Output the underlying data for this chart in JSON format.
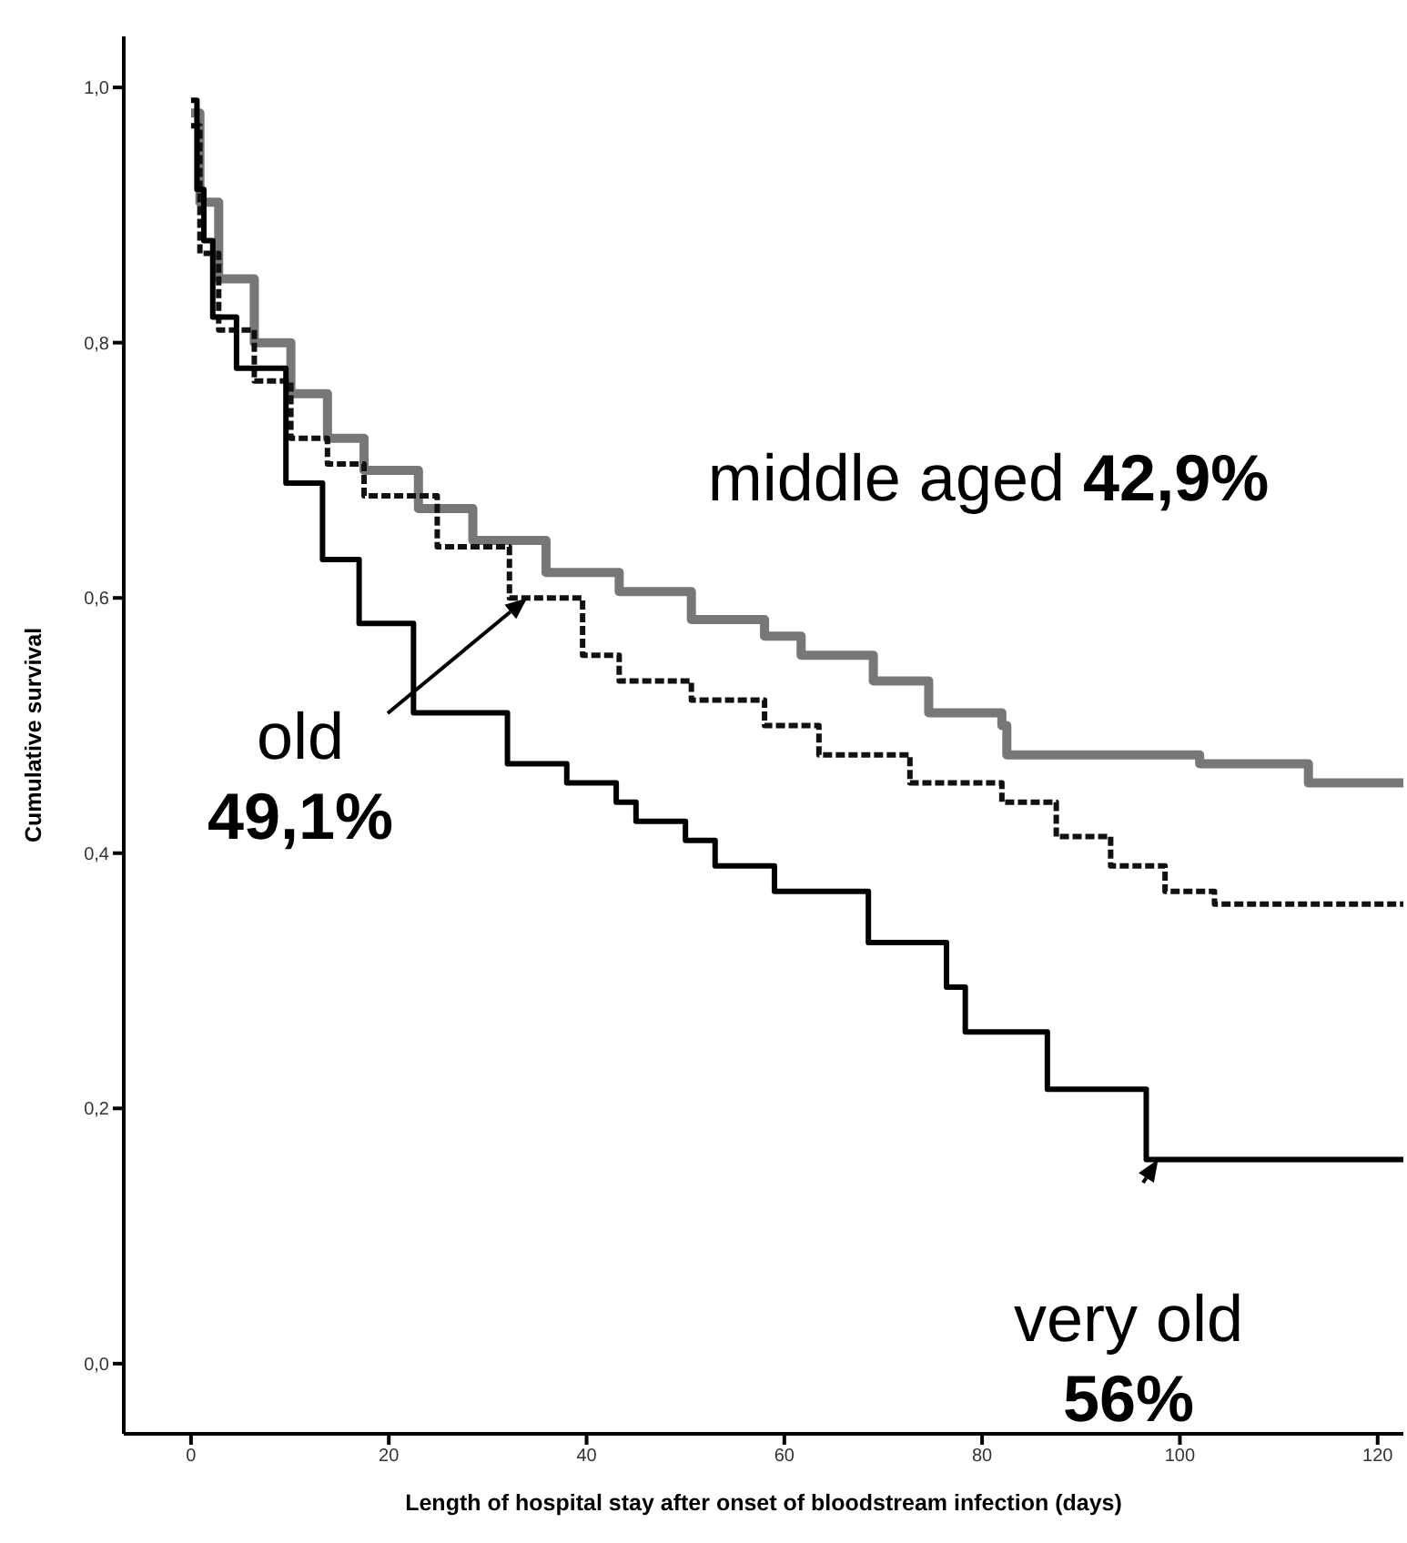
{
  "chart_data": {
    "type": "step",
    "xlabel": "Length of hospital stay after onset of bloodstream infection (days)",
    "ylabel": "Cumulative survival",
    "xlim": [
      -6.8,
      122.6
    ],
    "ylim": [
      -0.055,
      1.04
    ],
    "xticks": [
      0,
      20,
      40,
      60,
      80,
      100,
      120
    ],
    "yticks": [
      {
        "value": 0,
        "label": "0,0"
      },
      {
        "value": 0.2,
        "label": "0,2"
      },
      {
        "value": 0.4,
        "label": "0,4"
      },
      {
        "value": 0.6,
        "label": "0,6"
      },
      {
        "value": 0.8,
        "label": "0,8"
      },
      {
        "value": 1,
        "label": "1,0"
      }
    ],
    "line_style": "solid",
    "series": [
      {
        "color": "#777777",
        "x": [
          0,
          0.9,
          2.8,
          6.4,
          10.1,
          13.8,
          17.5,
          23,
          28.5,
          35.9,
          43.3,
          50.6,
          58,
          61.7,
          69,
          74.6,
          82,
          82.5,
          102,
          113,
          122.6
        ],
        "values": [
          0.98,
          0.91,
          0.85,
          0.8,
          0.76,
          0.725,
          0.7,
          0.67,
          0.645,
          0.62,
          0.605,
          0.583,
          0.57,
          0.555,
          0.535,
          0.51,
          0.5,
          0.477,
          0.47,
          0.455,
          0.455
        ]
      },
      {
        "color": "#111111",
        "line_style": "dashed",
        "x": [
          0,
          0.9,
          2.8,
          6.4,
          10.1,
          13.8,
          17.5,
          24.9,
          32.2,
          39.6,
          43.3,
          50.6,
          58,
          63.5,
          72.7,
          82,
          87.5,
          93,
          98.5,
          103.5,
          122.6
        ],
        "values": [
          0.97,
          0.87,
          0.81,
          0.77,
          0.725,
          0.705,
          0.68,
          0.64,
          0.6,
          0.555,
          0.535,
          0.52,
          0.5,
          0.477,
          0.455,
          0.44,
          0.413,
          0.39,
          0.37,
          0.36,
          0.36
        ]
      },
      {
        "color": "#000000",
        "x": [
          0,
          0.6,
          1.3,
          2.2,
          4.6,
          9.6,
          13.3,
          17,
          22.5,
          32,
          38,
          43,
          45,
          50,
          53,
          59,
          68.5,
          76.4,
          78.3,
          86.6,
          96.6,
          122.6
        ],
        "values": [
          0.99,
          0.92,
          0.88,
          0.82,
          0.78,
          0.69,
          0.63,
          0.58,
          0.51,
          0.47,
          0.455,
          0.44,
          0.425,
          0.41,
          0.39,
          0.37,
          0.33,
          0.295,
          0.26,
          0.215,
          0.16,
          0.16
        ]
      }
    ],
    "annotations": [
      "middle aged 42,9%",
      {
        "text": "old 49,1%",
        "x": 34,
        "y": 0.6
      },
      {
        "text": "very old 56%",
        "x": 97.8,
        "y": 0.16
      }
    ]
  }
}
